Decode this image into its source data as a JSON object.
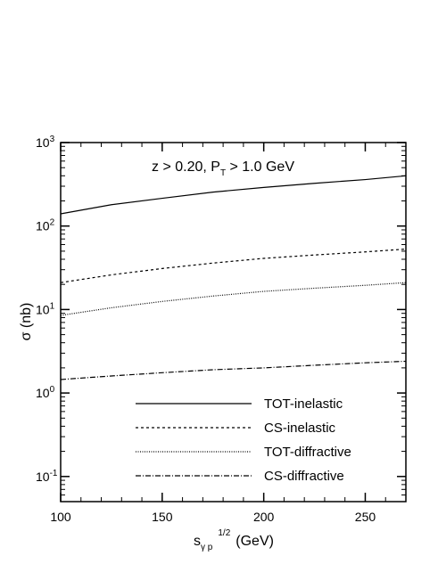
{
  "chart_data": {
    "type": "line",
    "annotation": [
      "z > 0.20, P",
      "T",
      " > 1.0 GeV"
    ],
    "y_label": "σ  (nb)",
    "x_label": [
      "s",
      "γ p",
      "1/2",
      "(GeV)"
    ],
    "x": [
      100,
      125,
      150,
      175,
      200,
      225,
      250,
      270
    ],
    "xlim": [
      100,
      270
    ],
    "xticks": [
      100,
      150,
      200,
      250
    ],
    "ylim": [
      0.05,
      1000
    ],
    "log_y": true,
    "yticks": [
      {
        "value": 0.1,
        "label": "10",
        "exponent": "-1"
      },
      {
        "value": 1,
        "label": "10",
        "exponent": "0"
      },
      {
        "value": 10,
        "label": "10",
        "exponent": "1"
      },
      {
        "value": 100,
        "label": "10",
        "exponent": "2"
      },
      {
        "value": 1000,
        "label": "10",
        "exponent": "3"
      }
    ],
    "legend": "lower right",
    "series": [
      {
        "name": "TOT-inelastic",
        "color": "#000000",
        "dash": "none",
        "values": [
          140,
          180,
          215,
          255,
          290,
          325,
          360,
          400
        ]
      },
      {
        "name": "CS-inelastic",
        "color": "#000000",
        "dash": "3,3",
        "values": [
          21,
          26,
          31,
          36,
          41,
          45,
          49,
          53
        ]
      },
      {
        "name": "TOT-diffractive",
        "color": "#000000",
        "dash": "1,1.5",
        "values": [
          8.5,
          10.5,
          12.5,
          14.5,
          16.5,
          18,
          19.5,
          21
        ]
      },
      {
        "name": "CS-diffractive",
        "color": "#000000",
        "dash": "6,2,1,2",
        "values": [
          1.45,
          1.6,
          1.75,
          1.9,
          2.0,
          2.15,
          2.3,
          2.4
        ]
      }
    ]
  }
}
